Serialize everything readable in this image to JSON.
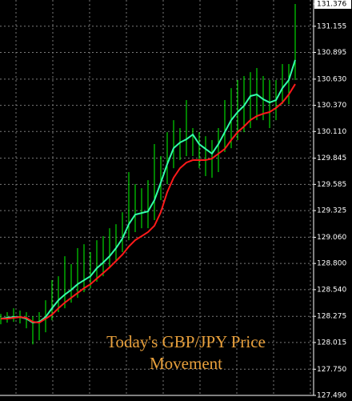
{
  "chart_data": {
    "type": "stock",
    "annotation": "Today's GBP/JPY Price Movement",
    "ylim": [
      127.49,
      131.376
    ],
    "yticks": [
      131.376,
      131.155,
      130.895,
      {
        "value": 130.63,
        "label": "130.630"
      },
      {
        "value": 130.37,
        "label": "130.370"
      },
      {
        "value": 130.11,
        "label": "130.110"
      },
      129.845,
      129.585,
      129.325,
      {
        "value": 129.06,
        "label": "129.060"
      },
      {
        "value": 128.8,
        "label": "128.800"
      },
      {
        "value": 128.54,
        "label": "128.540"
      },
      128.275,
      128.015,
      {
        "value": 127.75,
        "label": "127.750"
      },
      {
        "value": 127.49,
        "label": "127.490"
      }
    ],
    "grid": true,
    "bars": {
      "color": "#00ff00",
      "high": [
        128.3,
        128.316,
        128.355,
        128.332,
        128.316,
        128.276,
        128.316,
        128.435,
        128.634,
        128.673,
        128.872,
        128.793,
        128.952,
        128.991,
        128.912,
        129.031,
        129.071,
        129.15,
        129.19,
        129.309,
        129.707,
        129.587,
        129.547,
        129.627,
        129.985,
        129.866,
        130.104,
        130.223,
        130.144,
        130.422,
        130.144,
        130.104,
        130.064,
        130.025,
        130.144,
        130.422,
        130.541,
        130.621,
        130.661,
        130.7,
        130.74,
        130.661,
        130.621,
        130.621,
        130.78,
        130.78,
        131.376
      ],
      "low": [
        128.196,
        128.212,
        128.22,
        128.204,
        128.157,
        127.997,
        128.037,
        128.117,
        128.236,
        128.316,
        128.355,
        128.411,
        128.459,
        128.515,
        128.554,
        128.618,
        128.673,
        128.753,
        128.832,
        128.912,
        129.031,
        129.111,
        129.15,
        129.15,
        129.23,
        129.428,
        129.587,
        129.746,
        129.826,
        129.866,
        129.866,
        129.746,
        129.667,
        129.651,
        129.707,
        129.906,
        129.945,
        130.025,
        130.104,
        130.144,
        130.223,
        130.223,
        130.144,
        130.223,
        130.382,
        130.382,
        130.621
      ]
    },
    "series": [
      {
        "color": "#33ffaa",
        "values": [
          128.252,
          128.26,
          128.268,
          128.268,
          128.252,
          128.212,
          128.22,
          128.268,
          128.355,
          128.435,
          128.491,
          128.538,
          128.594,
          128.634,
          128.673,
          128.753,
          128.809,
          128.872,
          128.952,
          129.047,
          129.19,
          129.285,
          129.301,
          129.317,
          129.428,
          129.603,
          129.786,
          129.945,
          130.001,
          130.033,
          130.08,
          129.985,
          129.937,
          129.89,
          129.985,
          130.104,
          130.223,
          130.303,
          130.366,
          130.462,
          130.478,
          130.43,
          130.398,
          130.422,
          130.541,
          130.621,
          130.82
        ]
      },
      {
        "color": "#ff1a1a",
        "values": [
          128.252,
          128.252,
          128.26,
          128.268,
          128.26,
          128.22,
          128.212,
          128.252,
          128.292,
          128.355,
          128.411,
          128.459,
          128.507,
          128.554,
          128.594,
          128.65,
          128.705,
          128.761,
          128.824,
          128.888,
          128.968,
          129.031,
          129.071,
          129.111,
          129.174,
          129.309,
          129.508,
          129.651,
          129.746,
          129.802,
          129.826,
          129.826,
          129.826,
          129.842,
          129.89,
          129.937,
          130.025,
          130.104,
          130.16,
          130.223,
          130.263,
          130.287,
          130.303,
          130.343,
          130.398,
          130.478,
          130.581
        ]
      }
    ]
  }
}
